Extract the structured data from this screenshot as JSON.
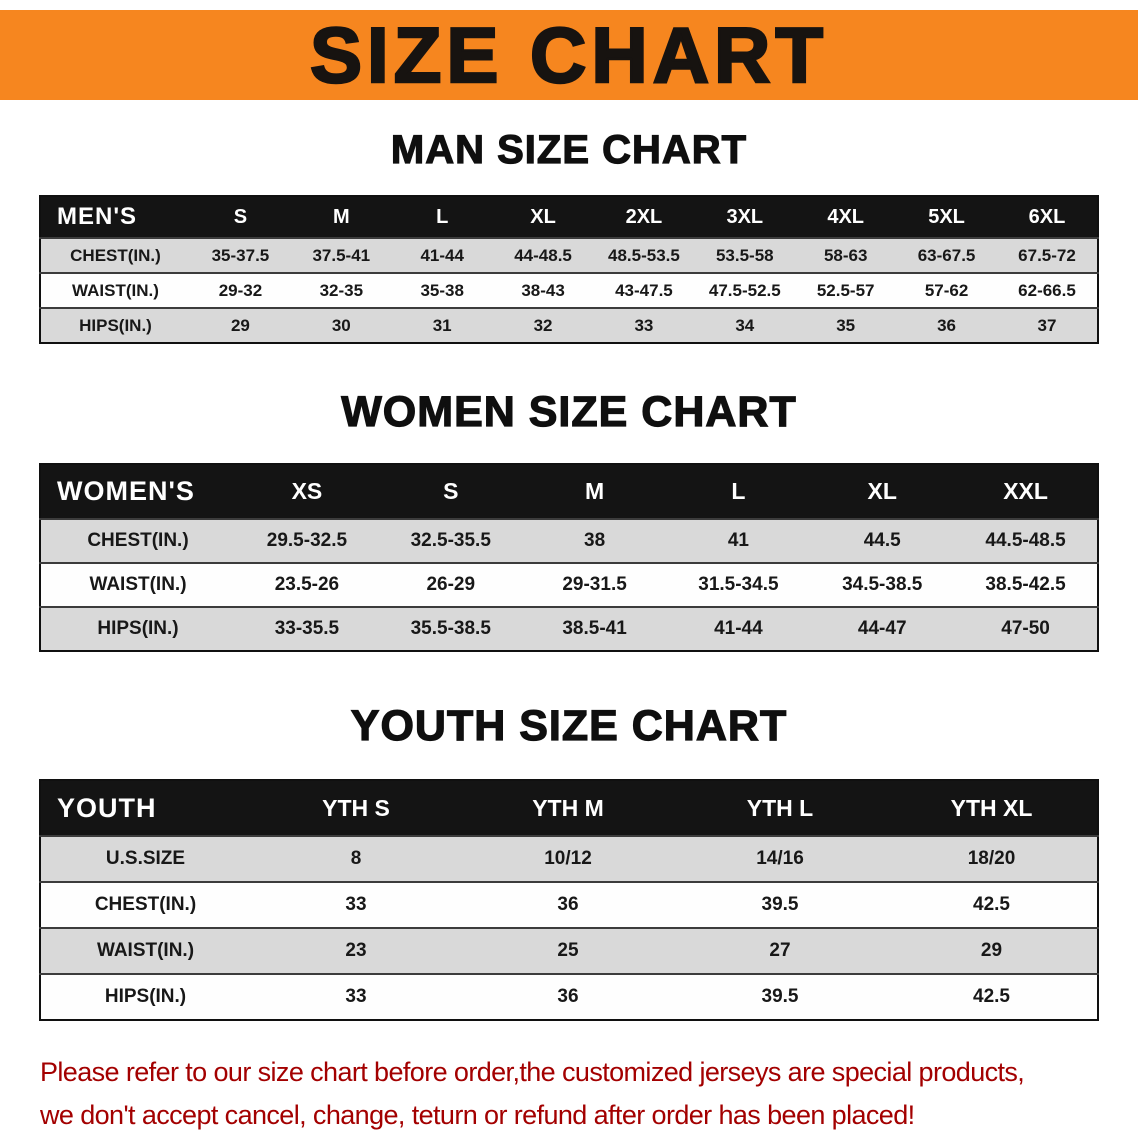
{
  "banner": {
    "title": "SIZE CHART"
  },
  "theme": {
    "banner_orange": "#f6861f",
    "header_black": "#141414",
    "stripe_gray": "#d9d9d9",
    "disclaimer_red": "#a30000"
  },
  "sections": [
    {
      "id": "men",
      "heading": "MAN SIZE CHART",
      "table": {
        "label": "MEN'S",
        "columns": [
          "S",
          "M",
          "L",
          "XL",
          "2XL",
          "3XL",
          "4XL",
          "5XL",
          "6XL"
        ],
        "rows": [
          {
            "label": "CHEST(IN.)",
            "values": [
              "35-37.5",
              "37.5-41",
              "41-44",
              "44-48.5",
              "48.5-53.5",
              "53.5-58",
              "58-63",
              "63-67.5",
              "67.5-72"
            ]
          },
          {
            "label": "WAIST(IN.)",
            "values": [
              "29-32",
              "32-35",
              "35-38",
              "38-43",
              "43-47.5",
              "47.5-52.5",
              "52.5-57",
              "57-62",
              "62-66.5"
            ]
          },
          {
            "label": "HIPS(IN.)",
            "values": [
              "29",
              "30",
              "31",
              "32",
              "33",
              "34",
              "35",
              "36",
              "37"
            ]
          }
        ]
      }
    },
    {
      "id": "women",
      "heading": "WOMEN SIZE CHART",
      "table": {
        "label": "WOMEN'S",
        "columns": [
          "XS",
          "S",
          "M",
          "L",
          "XL",
          "XXL"
        ],
        "rows": [
          {
            "label": "CHEST(IN.)",
            "values": [
              "29.5-32.5",
              "32.5-35.5",
              "38",
              "41",
              "44.5",
              "44.5-48.5"
            ]
          },
          {
            "label": "WAIST(IN.)",
            "values": [
              "23.5-26",
              "26-29",
              "29-31.5",
              "31.5-34.5",
              "34.5-38.5",
              "38.5-42.5"
            ]
          },
          {
            "label": "HIPS(IN.)",
            "values": [
              "33-35.5",
              "35.5-38.5",
              "38.5-41",
              "41-44",
              "44-47",
              "47-50"
            ]
          }
        ]
      }
    },
    {
      "id": "youth",
      "heading": "YOUTH SIZE CHART",
      "table": {
        "label": "YOUTH",
        "columns": [
          "YTH S",
          "YTH M",
          "YTH L",
          "YTH XL"
        ],
        "rows": [
          {
            "label": "U.S.SIZE",
            "values": [
              "8",
              "10/12",
              "14/16",
              "18/20"
            ]
          },
          {
            "label": "CHEST(IN.)",
            "values": [
              "33",
              "36",
              "39.5",
              "42.5"
            ]
          },
          {
            "label": "WAIST(IN.)",
            "values": [
              "23",
              "25",
              "27",
              "29"
            ]
          },
          {
            "label": "HIPS(IN.)",
            "values": [
              "33",
              "36",
              "39.5",
              "42.5"
            ]
          }
        ]
      }
    }
  ],
  "disclaimer": {
    "lines": [
      "Please refer to our size chart before order,the customized jerseys are special products,",
      "we don't accept cancel, change, teturn or refund after order has been placed!"
    ]
  }
}
